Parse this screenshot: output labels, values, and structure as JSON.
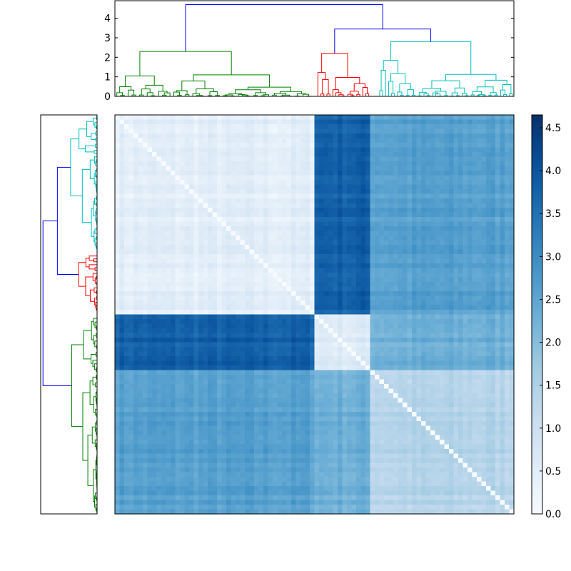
{
  "chart_data": [
    {
      "type": "dendrogram",
      "orientation": "top",
      "ylim": [
        0,
        4.9
      ],
      "yticks": [
        0,
        1,
        2,
        3,
        4
      ],
      "clusters": [
        {
          "color": "#008000",
          "leaf_span": [
            0,
            0.495
          ],
          "height": 2.3
        },
        {
          "color": "#ff0000",
          "leaf_span": [
            0.505,
            0.64
          ],
          "height": 2.2
        },
        {
          "color": "#00bfbf",
          "leaf_span": [
            0.66,
            1.0
          ],
          "height": 2.8
        }
      ],
      "link_color": "#0000ff",
      "root_height": 4.7,
      "merge_red_cyan_height": 3.45,
      "merge_cluster_height": 3.05
    },
    {
      "type": "dendrogram",
      "orientation": "left",
      "clusters": [
        {
          "color": "#00bfbf",
          "leaf_span": [
            0,
            0.34
          ]
        },
        {
          "color": "#ff0000",
          "leaf_span": [
            0.35,
            0.495
          ]
        },
        {
          "color": "#008000",
          "leaf_span": [
            0.505,
            1.0
          ]
        }
      ],
      "link_color": "#0000ff"
    },
    {
      "type": "heatmap",
      "colormap": "Blues",
      "vmin": 0,
      "vmax": 4.65,
      "group_boundaries": [
        0,
        0.495,
        0.64,
        1.0
      ],
      "block_values": [
        [
          0.45,
          3.8,
          2.6
        ],
        [
          3.8,
          0.6,
          2.3
        ],
        [
          2.6,
          2.3,
          1.4
        ]
      ]
    },
    {
      "type": "colorbar",
      "colormap": "Blues",
      "ticks": [
        "0.0",
        "0.5",
        "1.0",
        "1.5",
        "2.0",
        "2.5",
        "3.0",
        "3.5",
        "4.0",
        "4.5"
      ],
      "tick_values": [
        0,
        0.5,
        1,
        1.5,
        2,
        2.5,
        3,
        3.5,
        4,
        4.5
      ],
      "range": [
        0,
        4.65
      ]
    }
  ]
}
